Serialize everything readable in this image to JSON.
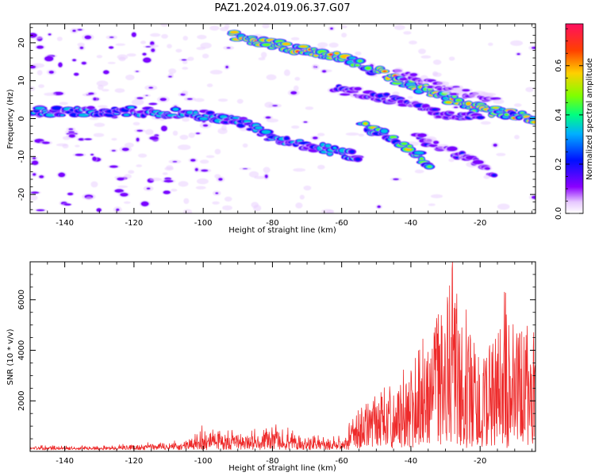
{
  "title": "PAZ1.2024.019.06.37.G07",
  "chart_data": [
    {
      "type": "heatmap",
      "xlabel": "Height of straight line (km)",
      "ylabel": "Frequency (Hz)",
      "xlim": [
        -150,
        -4
      ],
      "ylim": [
        -25,
        25
      ],
      "xticks": [
        -140,
        -120,
        -100,
        -80,
        -60,
        -40,
        -20
      ],
      "yticks": [
        20,
        10,
        0,
        -10,
        -20
      ],
      "colorbar": {
        "label": "Normalized spectral amplitude",
        "range": [
          0,
          0.77
        ],
        "ticks": [
          0.0,
          0.2,
          0.4,
          0.6
        ],
        "colormap": "gist_rainbow_r"
      },
      "ridges": [
        {
          "points": [
            [
              -150,
              2
            ],
            [
              -120,
              2
            ],
            [
              -100,
              1
            ],
            [
              -88,
              -1
            ],
            [
              -80,
              -5
            ],
            [
              -70,
              -7
            ],
            [
              -60,
              -9
            ],
            [
              -55,
              -10
            ]
          ],
          "peak": 0.45
        },
        {
          "points": [
            [
              -54,
              -2
            ],
            [
              -45,
              -5
            ],
            [
              -38,
              -9
            ],
            [
              -35,
              -12
            ]
          ],
          "peak": 0.62
        },
        {
          "points": [
            [
              -38,
              -5
            ],
            [
              -30,
              -8
            ],
            [
              -20,
              -12
            ],
            [
              -16,
              -15
            ]
          ],
          "peak": 0.25
        },
        {
          "points": [
            [
              -92,
              22
            ],
            [
              -60,
              16
            ],
            [
              -40,
              9
            ],
            [
              -22,
              3
            ],
            [
              -4,
              0
            ]
          ],
          "peak": 0.75
        },
        {
          "points": [
            [
              -62,
              8
            ],
            [
              -45,
              5
            ],
            [
              -32,
              1
            ],
            [
              -20,
              0
            ]
          ],
          "peak": 0.3
        },
        {
          "points": [
            [
              -44,
              12
            ],
            [
              -30,
              8
            ],
            [
              -15,
              5
            ]
          ],
          "peak": 0.2
        }
      ]
    },
    {
      "type": "line",
      "series": [
        {
          "color": "#ee2a2a"
        }
      ],
      "xlabel": "Height of straight line (km)",
      "ylabel": "SNR (10 * v/v)",
      "xlim": [
        -150,
        -4
      ],
      "ylim": [
        0,
        7500
      ],
      "xticks": [
        -140,
        -120,
        -100,
        -80,
        -60,
        -40,
        -20
      ],
      "yticks": [
        2000,
        4000,
        6000
      ],
      "envelope": [
        [
          -150,
          200
        ],
        [
          -130,
          180
        ],
        [
          -110,
          350
        ],
        [
          -102,
          700
        ],
        [
          -100,
          1100
        ],
        [
          -90,
          800
        ],
        [
          -80,
          1100
        ],
        [
          -70,
          700
        ],
        [
          -60,
          550
        ],
        [
          -55,
          1500
        ],
        [
          -45,
          2500
        ],
        [
          -40,
          3200
        ],
        [
          -35,
          4600
        ],
        [
          -30,
          5500
        ],
        [
          -28,
          7500
        ],
        [
          -25,
          5000
        ],
        [
          -20,
          4200
        ],
        [
          -15,
          4200
        ],
        [
          -13,
          6300
        ],
        [
          -10,
          4500
        ],
        [
          -5,
          4900
        ],
        [
          -4,
          4200
        ]
      ],
      "notable_peaks": [
        [
          -28,
          7500
        ],
        [
          -13,
          6300
        ],
        [
          -33,
          4900
        ],
        [
          -24,
          5600
        ]
      ]
    }
  ]
}
